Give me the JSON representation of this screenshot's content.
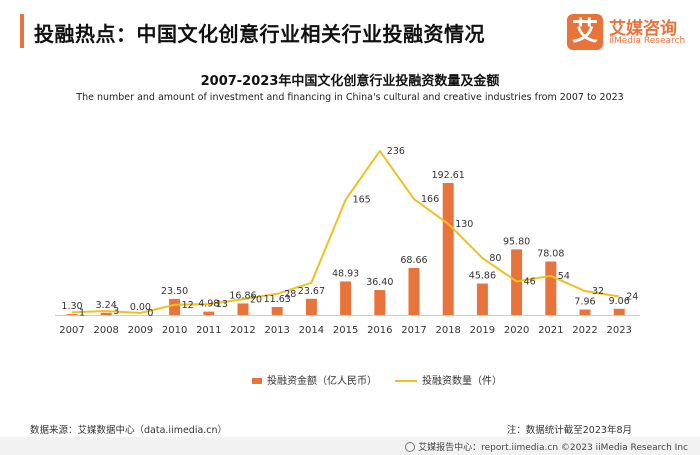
{
  "header": {
    "title": "投融热点：中国文化创意行业相关行业投融资情况"
  },
  "logo": {
    "mark": "艾",
    "name": "艾媒咨询",
    "sub": "iiMedia Research"
  },
  "chart_data": {
    "type": "bar",
    "title": "2007-2023年中国文化创意行业投融资数量及金额",
    "subtitle": "The number and amount of investment and financing in China's cultural and creative industries from 2007 to 2023",
    "categories": [
      "2007",
      "2008",
      "2009",
      "2010",
      "2011",
      "2012",
      "2013",
      "2014",
      "2015",
      "2016",
      "2017",
      "2018",
      "2019",
      "2020",
      "2021",
      "2022",
      "2023"
    ],
    "series": [
      {
        "name": "投融资金额（亿人民币）",
        "type": "bar",
        "color": "#e8743b",
        "values": [
          1.3,
          3.24,
          0.0,
          23.5,
          4.98,
          16.86,
          11.63,
          23.67,
          48.93,
          36.4,
          68.66,
          192.61,
          45.86,
          95.8,
          78.08,
          7.96,
          9.06
        ],
        "labels": [
          "1.30",
          "3.24",
          "0.00",
          "23.50",
          "4.98",
          "16.86",
          "11.63",
          "23.67",
          "48.93",
          "36.40",
          "68.66",
          "192.61",
          "45.86",
          "95.80",
          "78.08",
          "7.96",
          "9.06"
        ]
      },
      {
        "name": "投融资数量（件）",
        "type": "line",
        "color": "#f0c020",
        "values": [
          1,
          3,
          0,
          12,
          13,
          20,
          28,
          44,
          165,
          236,
          166,
          130,
          80,
          46,
          54,
          32,
          24
        ],
        "labels": [
          "1",
          "3",
          "0",
          "12",
          "13",
          "20",
          "28",
          "",
          "165",
          "236",
          "166",
          "130",
          "80",
          "46",
          "54",
          "32",
          "24"
        ]
      }
    ],
    "axis_labels": {
      "bar_y_range": [
        0,
        290
      ],
      "line_y_range": [
        0,
        290
      ]
    },
    "legend_position": "bottom"
  },
  "source": "数据来源：艾媒数据中心（data.iimedia.cn）",
  "note": "注：数据统计截至2023年8月",
  "footer": "艾媒报告中心：report.iimedia.cn  ©2023  iiMedia Research  Inc"
}
